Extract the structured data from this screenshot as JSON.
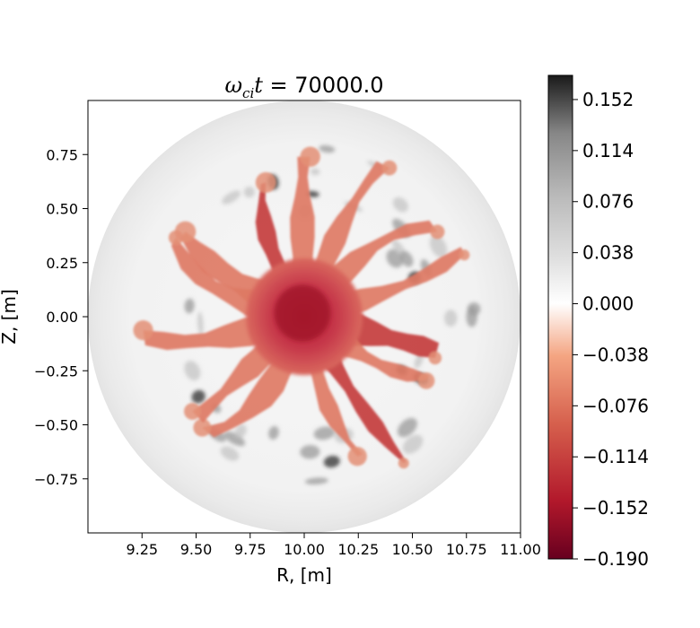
{
  "chart_data": {
    "type": "heatmap",
    "title": "ω_ci t = 70000.0",
    "title_parts": {
      "omega": "ω",
      "sub": "ci",
      "t": "t",
      "rest": " = 70000.0"
    },
    "xlabel": "R, [m]",
    "ylabel": "Z, [m]",
    "xlim": [
      9.0,
      11.0
    ],
    "ylim": [
      -1.0,
      1.0
    ],
    "xticks": [
      9.25,
      9.5,
      9.75,
      10.0,
      10.25,
      10.5,
      10.75,
      11.0
    ],
    "xtick_labels": [
      "9.25",
      "9.50",
      "9.75",
      "10.00",
      "10.25",
      "10.50",
      "10.75",
      "11.00"
    ],
    "yticks": [
      0.75,
      0.5,
      0.25,
      0.0,
      -0.25,
      -0.5,
      -0.75
    ],
    "ytick_labels": [
      "0.75",
      "0.50",
      "0.25",
      "0.00",
      "−0.25",
      "−0.50",
      "−0.75"
    ],
    "colormap": "RdGy",
    "color_range": [
      -0.19,
      0.17
    ],
    "colorbar_ticks": [
      0.152,
      0.114,
      0.076,
      0.038,
      0.0,
      -0.038,
      -0.076,
      -0.114,
      -0.152,
      -0.19
    ],
    "colorbar_tick_labels": [
      "0.152",
      "0.114",
      "0.076",
      "0.038",
      "0.000",
      "−0.038",
      "−0.076",
      "−0.114",
      "−0.152",
      "−0.190"
    ],
    "domain": {
      "shape": "circle",
      "center": [
        10.0,
        0.0
      ],
      "radius": 1.0
    },
    "core_value": -0.16,
    "finger_count": 14,
    "grid": false,
    "colors": {
      "neg_max": "#67001f",
      "neg_mid": "#d6604d",
      "zero": "#ffffff",
      "pos_mid": "#bababa",
      "pos_max": "#1a1a1a",
      "edge_gray": "#dcdcdc"
    }
  }
}
